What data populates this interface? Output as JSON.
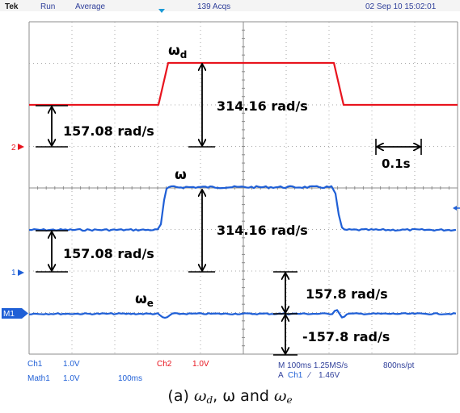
{
  "status_bar": {
    "brand": "Tek",
    "run_state": "Run",
    "acq_mode": "Average",
    "acq_count": "139 Acqs",
    "timestamp": "02 Sep 10 15:02:01"
  },
  "channel_markers": {
    "ch2": "2",
    "ch1": "1",
    "math1": "M1"
  },
  "bottom_bar": {
    "ch1_label": "Ch1",
    "ch1_scale": "1.0V",
    "ch2_label": "Ch2",
    "ch2_scale": "1.0V",
    "math1_label": "Math1",
    "math1_scale": "1.0V",
    "math1_time": "100ms",
    "timebase": "M 100ms 1.25MS/s",
    "record": "800ns/pt",
    "trigger_prefix": "A",
    "trigger_source": "Ch1",
    "trigger_slope": "∕",
    "trigger_level": "1.46V"
  },
  "annotations": {
    "omega_d": "ω",
    "omega_d_sub": "d",
    "omega": "ω",
    "omega_e": "ω",
    "omega_e_sub": "e",
    "wd_step": "314.16 rad/s",
    "wd_base": "157.08 rad/s",
    "w_step": "314.16 rad/s",
    "w_base": "157.08 rad/s",
    "we_pos": "157.8 rad/s",
    "we_neg": "-157.8 rad/s",
    "time_scale": "0.1s"
  },
  "caption": {
    "prefix": "(a) ",
    "w1": "ω",
    "w1_sub": "d",
    "sep1": ", ",
    "w2": "ω",
    "sep2": " and ",
    "w3": "ω",
    "w3_sub": "e"
  },
  "colors": {
    "trace_red": "#e8141e",
    "trace_blue": "#1f5fd6",
    "screen_bg": "#ffffff",
    "grid": "#9a9a9a",
    "status_text": "#2f3f9a"
  }
}
